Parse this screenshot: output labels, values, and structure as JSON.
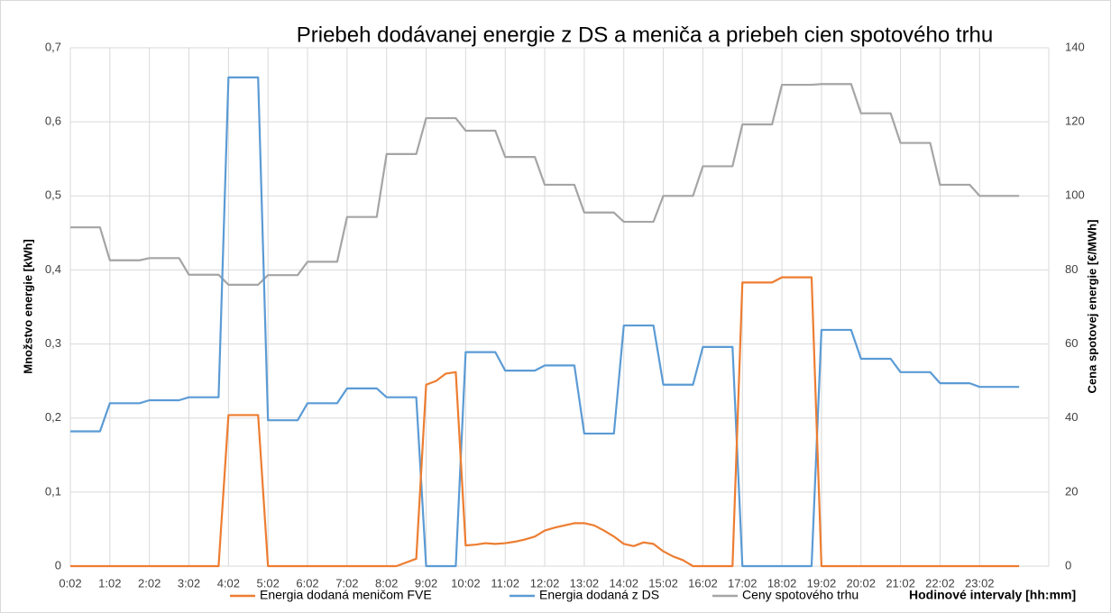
{
  "chart_data": {
    "type": "line",
    "title": "Priebeh dodávanej energie z DS a meniča  a priebeh cien spotového trhu",
    "xlabel": "Hodinové intervaly [hh:mm]",
    "ylabel": "Množstvo energie [kWh]",
    "y2label": "Cena spotovej energie [€/MWh]",
    "categories": [
      "0:02",
      null,
      null,
      null,
      "1:02",
      null,
      null,
      null,
      "2:02",
      null,
      null,
      null,
      "3:02",
      null,
      null,
      null,
      "4:02",
      null,
      null,
      null,
      "5:02",
      null,
      null,
      null,
      "6:02",
      null,
      null,
      null,
      "7:02",
      null,
      null,
      null,
      "8:02",
      null,
      null,
      null,
      "9:02",
      null,
      null,
      null,
      "10:02",
      null,
      null,
      null,
      "11:02",
      null,
      null,
      null,
      "12:02",
      null,
      null,
      null,
      "13:02",
      null,
      null,
      null,
      "14:02",
      null,
      null,
      null,
      "15:02",
      null,
      null,
      null,
      "16:02",
      null,
      null,
      null,
      "17:02",
      null,
      null,
      null,
      "18:02",
      null,
      null,
      null,
      "19:02",
      null,
      null,
      null,
      "20:02",
      null,
      null,
      null,
      "21:02",
      null,
      null,
      null,
      "22:02",
      null,
      null,
      null,
      "23:02",
      null,
      null,
      null,
      null
    ],
    "series": [
      {
        "name": "Energia dodaná meničom FVE",
        "color": "#ed7d31",
        "axis": "y",
        "values": [
          0,
          0,
          0,
          0,
          0,
          0,
          0,
          0,
          0,
          0,
          0,
          0,
          0,
          0,
          0,
          0,
          0.204,
          0.204,
          0.204,
          0.204,
          0,
          0,
          0,
          0,
          0,
          0,
          0,
          0,
          0,
          0,
          0,
          0,
          0,
          0,
          0.005,
          0.01,
          0.245,
          0.25,
          0.26,
          0.262,
          0.028,
          0.029,
          0.031,
          0.03,
          0.031,
          0.033,
          0.036,
          0.04,
          0.048,
          0.052,
          0.055,
          0.058,
          0.058,
          0.055,
          0.048,
          0.04,
          0.03,
          0.027,
          0.032,
          0.03,
          0.02,
          0.013,
          0.008,
          0,
          0,
          0,
          0,
          0,
          0.383,
          0.383,
          0.383,
          0.383,
          0.39,
          0.39,
          0.39,
          0.39,
          0,
          0,
          0,
          0,
          0,
          0,
          0,
          0,
          0,
          0,
          0,
          0,
          0,
          0,
          0,
          0,
          0,
          0,
          0,
          0,
          0
        ]
      },
      {
        "name": "Energia dodaná z DS",
        "color": "#5b9bd5",
        "axis": "y",
        "values": [
          0.182,
          0.182,
          0.182,
          0.182,
          0.22,
          0.22,
          0.22,
          0.22,
          0.224,
          0.224,
          0.224,
          0.224,
          0.228,
          0.228,
          0.228,
          0.228,
          0.66,
          0.66,
          0.66,
          0.66,
          0.197,
          0.197,
          0.197,
          0.197,
          0.22,
          0.22,
          0.22,
          0.22,
          0.24,
          0.24,
          0.24,
          0.24,
          0.228,
          0.228,
          0.228,
          0.228,
          0,
          0,
          0,
          0,
          0.289,
          0.289,
          0.289,
          0.289,
          0.264,
          0.264,
          0.264,
          0.264,
          0.271,
          0.271,
          0.271,
          0.271,
          0.179,
          0.179,
          0.179,
          0.179,
          0.325,
          0.325,
          0.325,
          0.325,
          0.245,
          0.245,
          0.245,
          0.245,
          0.296,
          0.296,
          0.296,
          0.296,
          0,
          0,
          0,
          0,
          0,
          0,
          0,
          0,
          0.319,
          0.319,
          0.319,
          0.319,
          0.28,
          0.28,
          0.28,
          0.28,
          0.262,
          0.262,
          0.262,
          0.262,
          0.247,
          0.247,
          0.247,
          0.247,
          0.242,
          0.242,
          0.242,
          0.242,
          0.242
        ]
      },
      {
        "name": "Ceny spotového trhu",
        "color": "#a5a5a5",
        "axis": "y2",
        "values": [
          91.5,
          91.5,
          91.5,
          91.5,
          82.6,
          82.6,
          82.6,
          82.6,
          83.2,
          83.2,
          83.2,
          83.2,
          78.7,
          78.7,
          78.7,
          78.7,
          76,
          76,
          76,
          76,
          78.6,
          78.6,
          78.6,
          78.6,
          82.2,
          82.2,
          82.2,
          82.2,
          94.3,
          94.3,
          94.3,
          94.3,
          111.3,
          111.3,
          111.3,
          111.3,
          121,
          121,
          121,
          121,
          117.6,
          117.6,
          117.6,
          117.6,
          110.5,
          110.5,
          110.5,
          110.5,
          103,
          103,
          103,
          103,
          95.5,
          95.5,
          95.5,
          95.5,
          93,
          93,
          93,
          93,
          100,
          100,
          100,
          100,
          108,
          108,
          108,
          108,
          119.3,
          119.3,
          119.3,
          119.3,
          130,
          130,
          130,
          130,
          130.2,
          130.2,
          130.2,
          130.2,
          122.3,
          122.3,
          122.3,
          122.3,
          114.3,
          114.3,
          114.3,
          114.3,
          103,
          103,
          103,
          103,
          100,
          100,
          100,
          100,
          100
        ]
      }
    ],
    "ylim": [
      0,
      0.7
    ],
    "yticks": [
      0,
      {
        "value": 0.1,
        "label": "0,1"
      },
      {
        "value": 0.2,
        "label": "0,2"
      },
      {
        "value": 0.3,
        "label": "0,3"
      },
      {
        "value": 0.4,
        "label": "0,4"
      },
      {
        "value": 0.5,
        "label": "0,5"
      },
      {
        "value": 0.6,
        "label": "0,6"
      },
      {
        "value": 0.7,
        "label": "0,7"
      }
    ],
    "y2lim": [
      0,
      140
    ],
    "y2ticks": [
      0,
      20,
      40,
      60,
      80,
      100,
      120,
      140
    ],
    "grid": true,
    "legend": "bottom"
  }
}
